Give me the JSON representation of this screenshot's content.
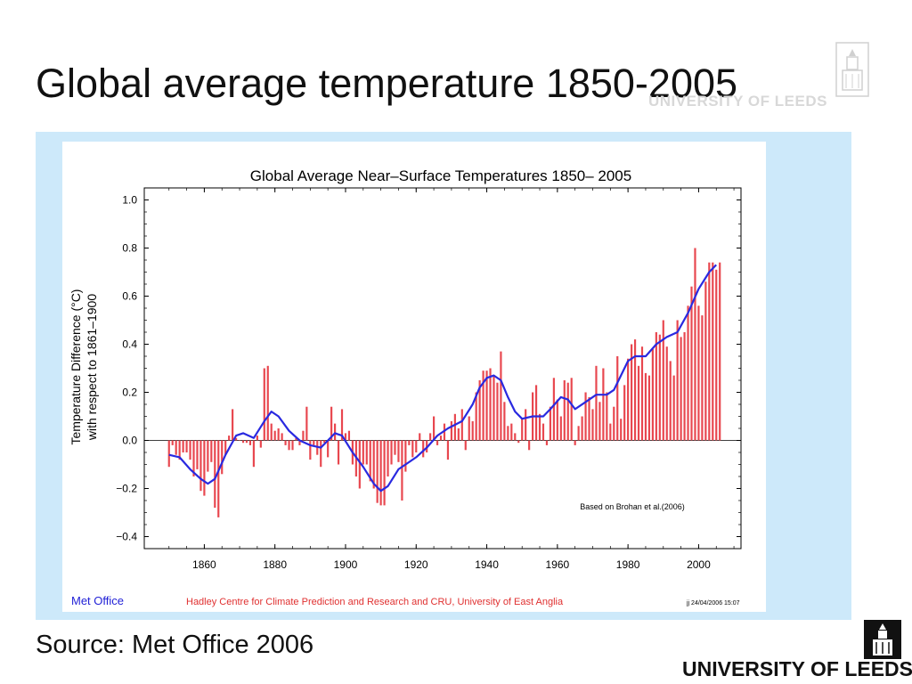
{
  "slide": {
    "title": "Global average temperature 1850-2005",
    "source": "Source: Met Office 2006",
    "logo_text": "UNIVERSITY OF LEEDS",
    "watermark_text": "UNIVERSITY OF LEEDS"
  },
  "colors": {
    "bar": "#e8474f",
    "smooth": "#2929e0",
    "panel": "#cde9fa",
    "met_office": "#1f1fd6",
    "hadley": "#e03030"
  },
  "chart_data": {
    "type": "bar",
    "title": "Global Average Near–Surface Temperatures 1850– 2005",
    "ylabel_line1": "Temperature Difference (°C)",
    "ylabel_line2": "with respect to 1861–1900",
    "xlabel": "",
    "ylim": [
      -0.45,
      1.05
    ],
    "xlim": [
      1843,
      2012
    ],
    "yticks": [
      -0.4,
      -0.2,
      0.0,
      0.2,
      0.4,
      0.6,
      0.8,
      1.0
    ],
    "ytick_labels": [
      "−0.4",
      "−0.2",
      "0.0",
      "0.2",
      "0.4",
      "0.6",
      "0.8",
      "1.0"
    ],
    "xticks": [
      1860,
      1880,
      1900,
      1920,
      1940,
      1960,
      1980,
      2000
    ],
    "xtick_labels": [
      "1860",
      "1880",
      "1900",
      "1920",
      "1940",
      "1960",
      "1980",
      "2000"
    ],
    "annotation": "Based on Brohan et al.(2006)",
    "footer_left": "Met Office",
    "footer_center": "Hadley Centre for Climate Prediction and Research and CRU, University of East Anglia",
    "footer_right": "jj 24/04/2006 15:07",
    "series": [
      {
        "kind": "annual_anomaly_bars",
        "x_start": 1850,
        "values": [
          -0.11,
          -0.02,
          -0.06,
          -0.08,
          -0.05,
          -0.05,
          -0.08,
          -0.15,
          -0.12,
          -0.21,
          -0.23,
          -0.13,
          -0.09,
          -0.28,
          -0.32,
          -0.14,
          -0.06,
          0.02,
          0.13,
          0.01,
          0.0,
          -0.01,
          -0.01,
          -0.02,
          -0.11,
          0.02,
          -0.03,
          0.3,
          0.31,
          0.07,
          0.04,
          0.05,
          0.03,
          -0.02,
          -0.04,
          -0.04,
          0.01,
          -0.02,
          0.04,
          0.14,
          -0.08,
          -0.02,
          -0.06,
          -0.11,
          -0.01,
          -0.07,
          0.14,
          0.07,
          -0.1,
          0.13,
          0.03,
          0.04,
          -0.1,
          -0.15,
          -0.2,
          -0.1,
          -0.1,
          -0.17,
          -0.2,
          -0.26,
          -0.27,
          -0.27,
          -0.15,
          -0.1,
          -0.06,
          -0.09,
          -0.25,
          -0.13,
          -0.02,
          -0.07,
          -0.05,
          0.03,
          -0.07,
          -0.05,
          0.03,
          0.1,
          -0.02,
          0.02,
          0.07,
          -0.08,
          0.08,
          0.11,
          0.05,
          0.13,
          -0.04,
          0.1,
          0.08,
          0.2,
          0.25,
          0.29,
          0.29,
          0.3,
          0.27,
          0.24,
          0.37,
          0.16,
          0.06,
          0.07,
          0.03,
          -0.01,
          0.09,
          0.13,
          -0.04,
          0.2,
          0.23,
          0.11,
          0.07,
          -0.02,
          0.14,
          0.26,
          0.17,
          0.1,
          0.25,
          0.24,
          0.26,
          -0.02,
          0.06,
          0.1,
          0.2,
          0.18,
          0.13,
          0.31,
          0.16,
          0.3,
          0.2,
          0.07,
          0.14,
          0.35,
          0.09,
          0.23,
          0.34,
          0.4,
          0.42,
          0.31,
          0.39,
          0.28,
          0.27,
          0.38,
          0.45,
          0.44,
          0.5,
          0.39,
          0.33,
          0.27,
          0.5,
          0.43,
          0.45,
          0.56,
          0.64,
          0.8,
          0.56,
          0.52,
          0.66,
          0.74,
          0.74,
          0.71,
          0.74
        ]
      },
      {
        "kind": "smoothed_curve",
        "points": [
          [
            1850,
            -0.06
          ],
          [
            1853,
            -0.07
          ],
          [
            1856,
            -0.12
          ],
          [
            1859,
            -0.16
          ],
          [
            1861,
            -0.18
          ],
          [
            1863,
            -0.16
          ],
          [
            1866,
            -0.06
          ],
          [
            1869,
            0.02
          ],
          [
            1871,
            0.03
          ],
          [
            1874,
            0.01
          ],
          [
            1877,
            0.08
          ],
          [
            1879,
            0.12
          ],
          [
            1881,
            0.1
          ],
          [
            1884,
            0.04
          ],
          [
            1887,
            0.0
          ],
          [
            1890,
            -0.02
          ],
          [
            1893,
            -0.03
          ],
          [
            1895,
            0.0
          ],
          [
            1897,
            0.03
          ],
          [
            1899,
            0.02
          ],
          [
            1902,
            -0.05
          ],
          [
            1905,
            -0.11
          ],
          [
            1908,
            -0.18
          ],
          [
            1910,
            -0.21
          ],
          [
            1912,
            -0.19
          ],
          [
            1915,
            -0.12
          ],
          [
            1917,
            -0.1
          ],
          [
            1920,
            -0.07
          ],
          [
            1923,
            -0.03
          ],
          [
            1926,
            0.02
          ],
          [
            1929,
            0.05
          ],
          [
            1933,
            0.08
          ],
          [
            1936,
            0.15
          ],
          [
            1938,
            0.22
          ],
          [
            1940,
            0.26
          ],
          [
            1942,
            0.27
          ],
          [
            1944,
            0.25
          ],
          [
            1946,
            0.18
          ],
          [
            1948,
            0.12
          ],
          [
            1950,
            0.09
          ],
          [
            1953,
            0.1
          ],
          [
            1956,
            0.1
          ],
          [
            1958,
            0.13
          ],
          [
            1961,
            0.18
          ],
          [
            1963,
            0.17
          ],
          [
            1965,
            0.13
          ],
          [
            1968,
            0.16
          ],
          [
            1971,
            0.19
          ],
          [
            1974,
            0.19
          ],
          [
            1976,
            0.21
          ],
          [
            1978,
            0.27
          ],
          [
            1980,
            0.33
          ],
          [
            1982,
            0.35
          ],
          [
            1985,
            0.35
          ],
          [
            1988,
            0.4
          ],
          [
            1991,
            0.43
          ],
          [
            1994,
            0.45
          ],
          [
            1997,
            0.53
          ],
          [
            2000,
            0.63
          ],
          [
            2003,
            0.7
          ],
          [
            2005,
            0.73
          ]
        ]
      }
    ]
  }
}
